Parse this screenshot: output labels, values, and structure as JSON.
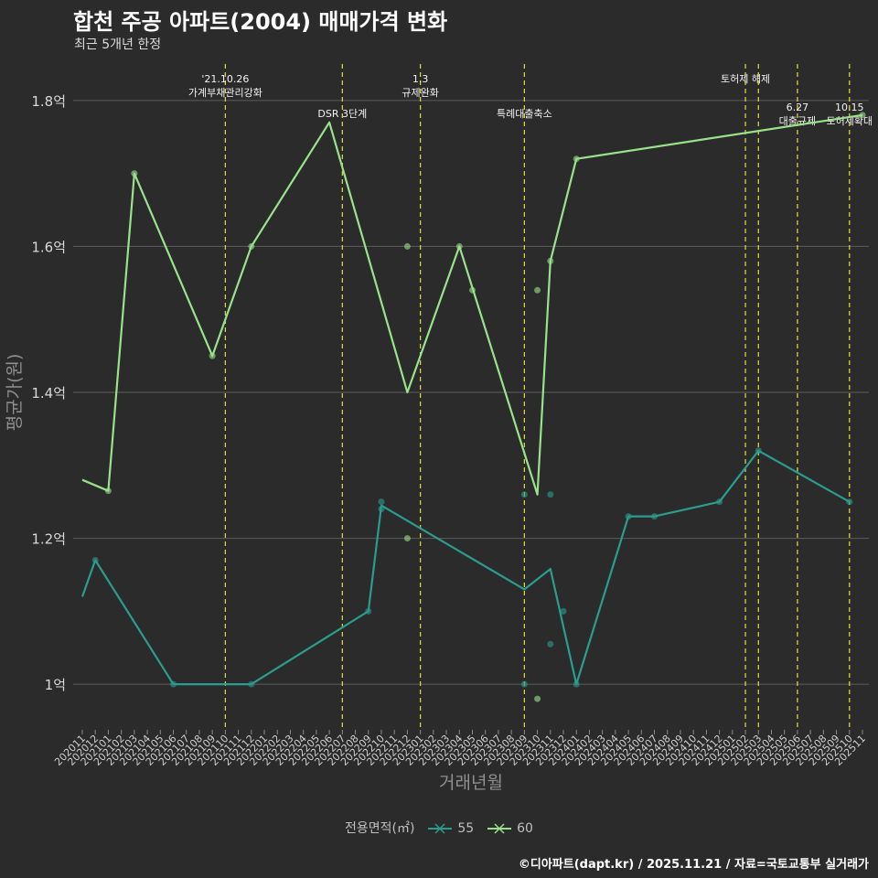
{
  "title": "합천 주공 아파트(2004) 매매가격 변화",
  "subtitle": "최근 5개년 한정",
  "caption": "©디아파트(dapt.kr) / 2025.11.21 / 자료=국토교통부 실거래가",
  "legend": {
    "title": "전용면적(㎡)",
    "items": [
      {
        "label": "55",
        "color": "#2a9d8f"
      },
      {
        "label": "60",
        "color": "#98e38a"
      }
    ]
  },
  "chart_data": {
    "type": "line",
    "title": "합천 주공 아파트(2004) 매매가격 변화",
    "xlabel": "거래년월",
    "ylabel": "평균가(원)",
    "ylim": [
      0.94,
      1.86
    ],
    "yticks": [
      1.0,
      1.2,
      1.4,
      1.6,
      1.8
    ],
    "ytick_labels": [
      "1억",
      "1.2억",
      "1.4억",
      "1.6억",
      "1.8억"
    ],
    "categories": [
      "202011",
      "202012",
      "202101",
      "202102",
      "202103",
      "202104",
      "202105",
      "202106",
      "202107",
      "202108",
      "202109",
      "202110",
      "202111",
      "202112",
      "202201",
      "202202",
      "202203",
      "202204",
      "202205",
      "202206",
      "202207",
      "202208",
      "202209",
      "202210",
      "202211",
      "202212",
      "202301",
      "202302",
      "202303",
      "202304",
      "202305",
      "202306",
      "202307",
      "202308",
      "202309",
      "202310",
      "202311",
      "202312",
      "202401",
      "202402",
      "202403",
      "202404",
      "202405",
      "202406",
      "202407",
      "202408",
      "202409",
      "202410",
      "202411",
      "202412",
      "202501",
      "202502",
      "202503",
      "202504",
      "202505",
      "202506",
      "202507",
      "202508",
      "202509",
      "202510",
      "202511"
    ],
    "series": [
      {
        "name": "55",
        "color": "#2a9d8f",
        "line": [
          [
            "202011",
            1.12
          ],
          [
            "202012",
            1.17
          ],
          [
            "202106",
            1.0
          ],
          [
            "202112",
            1.0
          ],
          [
            "202209",
            1.1
          ],
          [
            "202210",
            1.245
          ],
          [
            "202309",
            1.13
          ],
          [
            "202311",
            1.158
          ],
          [
            "202401",
            1.0
          ],
          [
            "202405",
            1.23
          ],
          [
            "202407",
            1.23
          ],
          [
            "202412",
            1.25
          ],
          [
            "202503",
            1.32
          ],
          [
            "202510",
            1.25
          ]
        ],
        "points": [
          [
            "202012",
            1.17
          ],
          [
            "202106",
            1.0
          ],
          [
            "202112",
            1.0
          ],
          [
            "202209",
            1.1
          ],
          [
            "202210",
            1.25
          ],
          [
            "202210",
            1.24
          ],
          [
            "202309",
            1.26
          ],
          [
            "202309",
            1.0
          ],
          [
            "202311",
            1.26
          ],
          [
            "202311",
            1.055
          ],
          [
            "202312",
            1.1
          ],
          [
            "202401",
            1.0
          ],
          [
            "202405",
            1.23
          ],
          [
            "202407",
            1.23
          ],
          [
            "202412",
            1.25
          ],
          [
            "202503",
            1.32
          ],
          [
            "202510",
            1.25
          ]
        ]
      },
      {
        "name": "60",
        "color": "#98e38a",
        "line": [
          [
            "202011",
            1.28
          ],
          [
            "202101",
            1.265
          ],
          [
            "202103",
            1.7
          ],
          [
            "202109",
            1.45
          ],
          [
            "202112",
            1.6
          ],
          [
            "202206",
            1.77
          ],
          [
            "202212",
            1.4
          ],
          [
            "202304",
            1.6
          ],
          [
            "202310",
            1.26
          ],
          [
            "202311",
            1.58
          ],
          [
            "202401",
            1.72
          ],
          [
            "202511",
            1.78
          ]
        ],
        "points": [
          [
            "202101",
            1.265
          ],
          [
            "202103",
            1.7
          ],
          [
            "202109",
            1.45
          ],
          [
            "202112",
            1.6
          ],
          [
            "202212",
            1.6
          ],
          [
            "202212",
            1.2
          ],
          [
            "202304",
            1.6
          ],
          [
            "202305",
            1.54
          ],
          [
            "202310",
            1.54
          ],
          [
            "202310",
            0.98
          ],
          [
            "202311",
            1.58
          ],
          [
            "202401",
            1.72
          ],
          [
            "202511",
            1.78
          ]
        ]
      }
    ],
    "events": [
      {
        "date": "202110",
        "lines": [
          "'21.10.26",
          "가계부채관리강화"
        ],
        "row": 0
      },
      {
        "date": "202207",
        "lines": [
          "DSR 3단계"
        ],
        "row": 1
      },
      {
        "date": "202301",
        "lines": [
          "1.3",
          "규제완화"
        ],
        "row": 0
      },
      {
        "date": "202309",
        "lines": [
          "특례대출축소"
        ],
        "row": 1
      },
      {
        "date": "202502",
        "lines": [
          "토허제 해제"
        ],
        "row": 0
      },
      {
        "date": "202503",
        "lines": [],
        "row": 0
      },
      {
        "date": "202506",
        "lines": [
          "6.27",
          "대출규제"
        ],
        "row": 2
      },
      {
        "date": "202510",
        "lines": [
          "10.15",
          "토허제확대"
        ],
        "row": 2
      }
    ]
  }
}
